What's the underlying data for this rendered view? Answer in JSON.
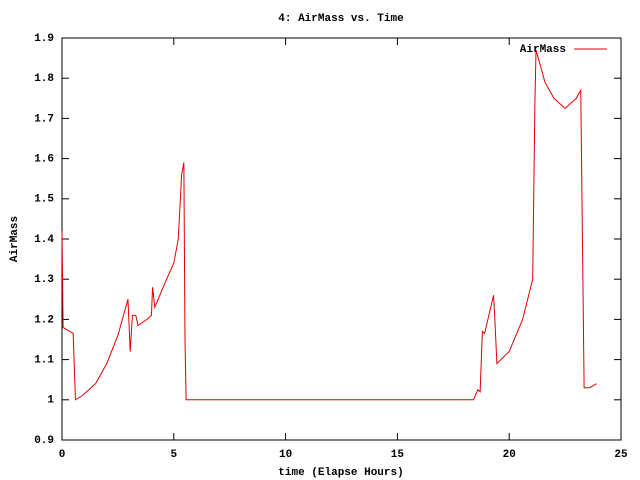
{
  "chart_data": {
    "type": "line",
    "title": "4: AirMass vs. Time",
    "x_label": "time (Elapse Hours)",
    "y_label": "AirMass",
    "x": [
      0,
      0.05,
      0.5,
      0.6,
      0.9,
      1.5,
      2.0,
      2.5,
      2.95,
      3.05,
      3.15,
      3.3,
      3.4,
      3.8,
      4.0,
      4.05,
      4.15,
      4.6,
      5.0,
      5.2,
      5.35,
      5.45,
      5.5,
      5.55,
      18.4,
      18.6,
      18.7,
      18.8,
      18.9,
      19.3,
      19.35,
      19.45,
      19.9,
      20.0,
      20.6,
      21.05,
      21.15,
      21.2,
      21.6,
      22.0,
      22.5,
      23.0,
      23.2,
      23.35,
      23.6,
      23.9
    ],
    "series": [
      {
        "name": "AirMass",
        "color": "#e00000",
        "values": [
          1.42,
          1.18,
          1.165,
          1.0,
          1.01,
          1.04,
          1.09,
          1.16,
          1.25,
          1.12,
          1.21,
          1.21,
          1.185,
          1.2,
          1.21,
          1.28,
          1.23,
          1.29,
          1.34,
          1.4,
          1.56,
          1.59,
          1.15,
          1.0,
          1.0,
          1.025,
          1.02,
          1.17,
          1.165,
          1.26,
          1.21,
          1.09,
          1.115,
          1.12,
          1.2,
          1.3,
          1.74,
          1.87,
          1.79,
          1.75,
          1.725,
          1.75,
          1.77,
          1.03,
          1.03,
          1.04
        ]
      }
    ],
    "xlim": [
      0,
      25
    ],
    "xticks": [
      0,
      5,
      10,
      15,
      20,
      25
    ],
    "ylim": [
      0.9,
      1.9
    ],
    "yticks": [
      0.9,
      1,
      1.1,
      1.2,
      1.3,
      1.4,
      1.5,
      1.6,
      1.7,
      1.8,
      1.9
    ],
    "legend": "top-right"
  }
}
